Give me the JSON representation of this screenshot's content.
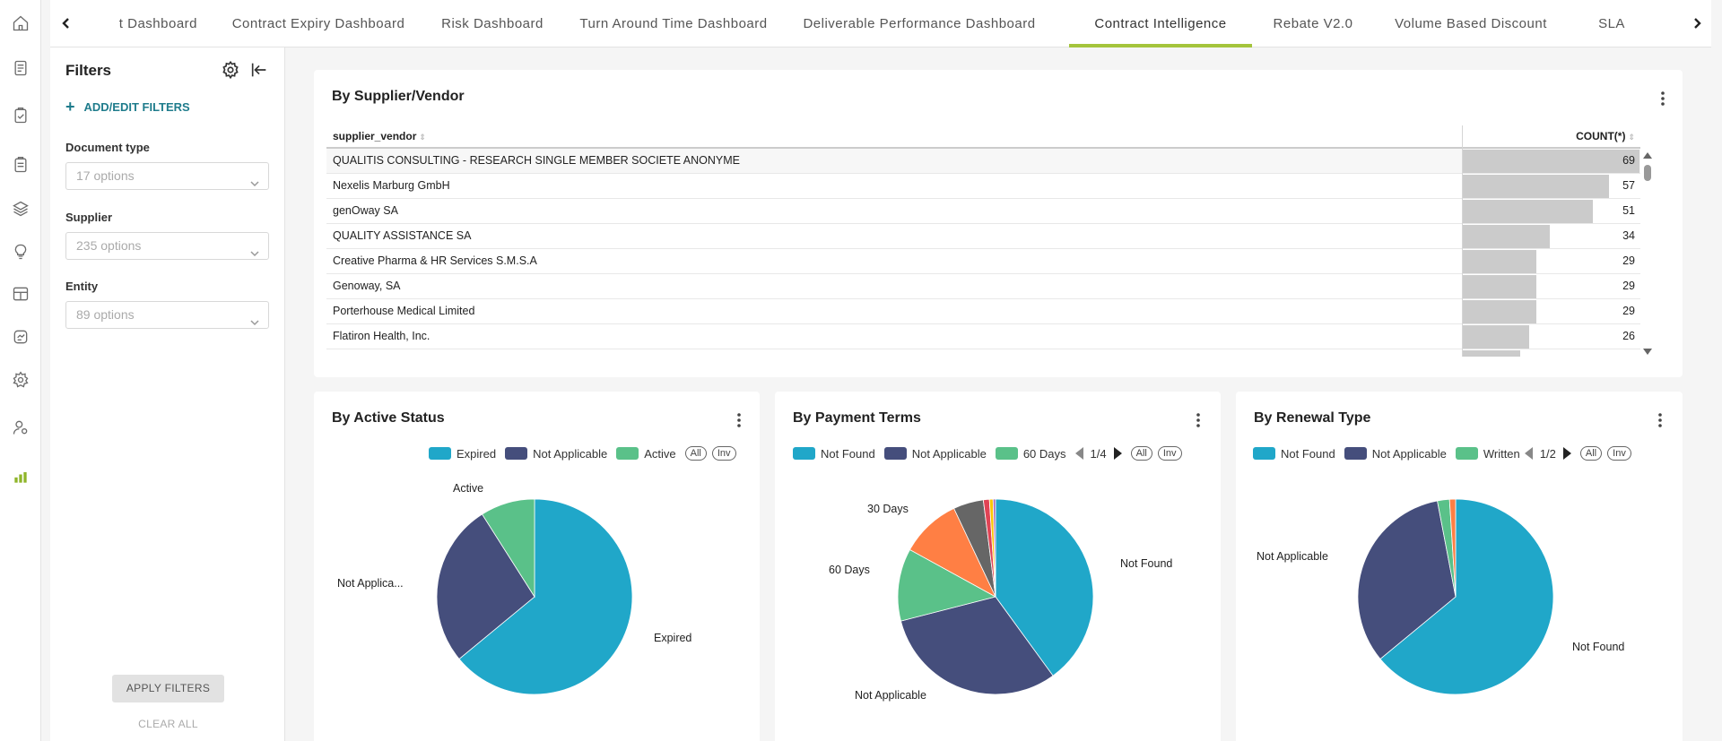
{
  "tabs": {
    "items": [
      {
        "label": "t Dashboard"
      },
      {
        "label": "Contract Expiry Dashboard"
      },
      {
        "label": "Risk Dashboard"
      },
      {
        "label": "Turn Around Time Dashboard"
      },
      {
        "label": "Deliverable Performance Dashboard"
      },
      {
        "label": "Contract Intelligence"
      },
      {
        "label": "Rebate V2.0"
      },
      {
        "label": "Volume Based Discount"
      },
      {
        "label": "SLA"
      }
    ],
    "active_index": 5,
    "accent_color": "#a4c43c"
  },
  "rail": {
    "icons": [
      "home-icon",
      "documents-icon",
      "clipboard-check-icon",
      "clipboard-icon",
      "layers-icon",
      "lightbulb-icon",
      "dashboard-layout-icon",
      "handshake-icon",
      "settings-icon",
      "user-settings-icon",
      "bar-chart-icon"
    ],
    "active_icon": "bar-chart-icon",
    "active_color": "#8fb52a"
  },
  "filters": {
    "title": "Filters",
    "add_label": "ADD/EDIT FILTERS",
    "groups": [
      {
        "label": "Document type",
        "placeholder": "17 options"
      },
      {
        "label": "Supplier",
        "placeholder": "235 options"
      },
      {
        "label": "Entity",
        "placeholder": "89 options"
      }
    ],
    "apply_label": "APPLY FILTERS",
    "clear_label": "CLEAR ALL"
  },
  "supplier_table": {
    "title": "By Supplier/Vendor",
    "col_name": "supplier_vendor",
    "col_count": "COUNT(*)",
    "max": 69,
    "rows": [
      {
        "name": "QUALITIS CONSULTING - RESEARCH SINGLE MEMBER SOCIETE ANONYME",
        "count": "69",
        "v": 69
      },
      {
        "name": "Nexelis Marburg GmbH",
        "count": "57",
        "v": 57
      },
      {
        "name": "genOway SA",
        "count": "51",
        "v": 51
      },
      {
        "name": "QUALITY ASSISTANCE SA",
        "count": "34",
        "v": 34
      },
      {
        "name": "Creative Pharma & HR Services S.M.S.A",
        "count": "29",
        "v": 29
      },
      {
        "name": "Genoway, SA",
        "count": "29",
        "v": 29
      },
      {
        "name": "Porterhouse Medical Limited",
        "count": "29",
        "v": 29
      },
      {
        "name": "Flatiron Health, Inc.",
        "count": "26",
        "v": 26
      }
    ]
  },
  "chart_data": [
    {
      "type": "pie",
      "title": "By Active Status",
      "series": [
        {
          "name": "Expired",
          "value": 64,
          "color": "#20a7c9"
        },
        {
          "name": "Not Applicable",
          "value": 27,
          "color": "#454e7c"
        },
        {
          "name": "Active",
          "value": 9,
          "color": "#5ac189"
        }
      ],
      "legend": [
        "Expired",
        "Not Applicable",
        "Active"
      ],
      "slice_labels": [
        "Expired",
        "Not Applica...",
        "Active"
      ],
      "controls": [
        "All",
        "Inv"
      ]
    },
    {
      "type": "pie",
      "title": "By Payment Terms",
      "series": [
        {
          "name": "Not Found",
          "value": 40,
          "color": "#20a7c9"
        },
        {
          "name": "Not Applicable",
          "value": 31,
          "color": "#454e7c"
        },
        {
          "name": "60 Days",
          "value": 12,
          "color": "#5ac189"
        },
        {
          "name": "30 Days",
          "value": 10,
          "color": "#ff7f44"
        },
        {
          "name": "",
          "value": 5,
          "color": "#666666"
        },
        {
          "name": "",
          "value": 1,
          "color": "#e04355"
        },
        {
          "name": "",
          "value": 0.6,
          "color": "#fcc700"
        },
        {
          "name": "",
          "value": 0.4,
          "color": "#a868b7"
        }
      ],
      "legend": [
        "Not Found",
        "Not Applicable",
        "60 Days"
      ],
      "slice_labels": [
        "Not Found",
        "Not Applicable",
        "60 Days",
        "30 Days"
      ],
      "page": "1/4",
      "controls": [
        "All",
        "Inv"
      ]
    },
    {
      "type": "pie",
      "title": "By Renewal Type",
      "series": [
        {
          "name": "Not Found",
          "value": 64,
          "color": "#20a7c9"
        },
        {
          "name": "Not Applicable",
          "value": 33,
          "color": "#454e7c"
        },
        {
          "name": "Written R",
          "value": 2,
          "color": "#5ac189"
        },
        {
          "name": "",
          "value": 1,
          "color": "#ff7f44"
        }
      ],
      "legend": [
        "Not Found",
        "Not Applicable",
        "Written R"
      ],
      "slice_labels": [
        "Not Found",
        "Not Applicable"
      ],
      "page": "1/2",
      "controls": [
        "All",
        "Inv"
      ]
    }
  ]
}
